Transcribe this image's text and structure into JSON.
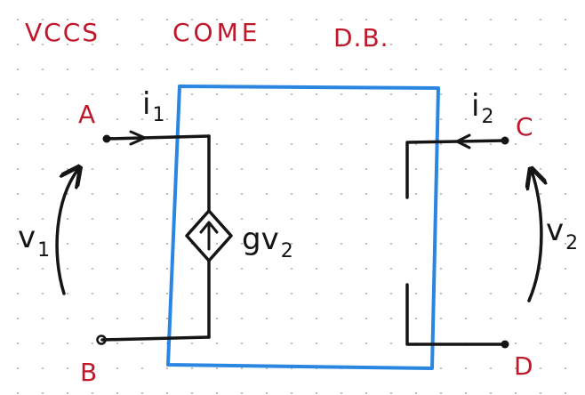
{
  "header": {
    "left": "VCCS",
    "middle": "COME",
    "right": "D.B."
  },
  "terminals": {
    "a": "A",
    "b": "B",
    "c": "C",
    "d": "D"
  },
  "variables": {
    "i1_main": "i",
    "i1_sub": "1",
    "i2_main": "i",
    "i2_sub": "2",
    "v1_main": "v",
    "v1_sub": "1",
    "v2_main": "v",
    "v2_sub": "2",
    "source_main": "gv",
    "source_sub": "2"
  },
  "colors": {
    "ink": "#151515",
    "labels": "#c0182b",
    "box": "#2a86e0"
  }
}
